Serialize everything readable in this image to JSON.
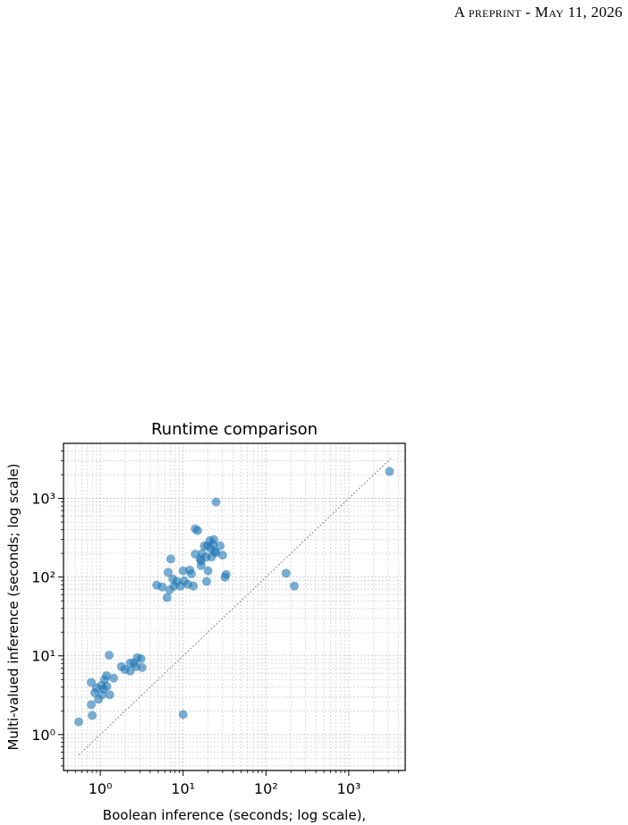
{
  "header": "A preprint - May 11, 2026",
  "chart_data": {
    "type": "scatter",
    "title": "Runtime comparison",
    "x_label": "Boolean inference (seconds; log scale),",
    "y_label": "Multi-valued inference (seconds; log scale)",
    "log_x": true,
    "log_y": true,
    "grid": true,
    "xlim": [
      0.36,
      4800
    ],
    "ylim": [
      0.35,
      5000
    ],
    "xticks": [
      {
        "value": 1,
        "label": "10⁰"
      },
      {
        "value": 10,
        "label": "10¹"
      },
      {
        "value": 100,
        "label": "10²"
      },
      {
        "value": 1000,
        "label": "10³"
      }
    ],
    "yticks": [
      {
        "value": 1,
        "label": "10⁰"
      },
      {
        "value": 10,
        "label": "10¹"
      },
      {
        "value": 100,
        "label": "10²"
      },
      {
        "value": 1000,
        "label": "10³"
      }
    ],
    "xminorticks": [
      0.4,
      0.5,
      0.6,
      0.7,
      0.8,
      0.9,
      2,
      3,
      4,
      5,
      6,
      7,
      8,
      9,
      20,
      30,
      40,
      50,
      60,
      70,
      80,
      90,
      200,
      300,
      400,
      500,
      600,
      700,
      800,
      900,
      2000,
      3000,
      4000
    ],
    "yminorticks": [
      0.4,
      0.5,
      0.6,
      0.7,
      0.8,
      0.9,
      2,
      3,
      4,
      5,
      6,
      7,
      8,
      9,
      20,
      30,
      40,
      50,
      60,
      70,
      80,
      90,
      200,
      300,
      400,
      500,
      600,
      700,
      800,
      900,
      2000,
      3000,
      4000
    ],
    "reference_line": {
      "x": [
        0.55,
        3200
      ],
      "y": [
        0.55,
        3200
      ],
      "color": "#999999"
    },
    "color": "#1f77b4",
    "x": [
      0.55,
      10,
      3100,
      25,
      0.78,
      0.8,
      0.78,
      0.86,
      0.95,
      1.03,
      1.05,
      1.13,
      1.19,
      1.28,
      1.3,
      1.2,
      1.45,
      1.8,
      1.99,
      2.3,
      2.55,
      2.8,
      3.1,
      2.3,
      2.7,
      3.2,
      0.9,
      1.1,
      4.8,
      5.6,
      6.4,
      6.9,
      6.6,
      7.1,
      7.5,
      7.8,
      8.4,
      9.3,
      10,
      10.3,
      11.4,
      12,
      12.6,
      13.3,
      14,
      14,
      15,
      16,
      16.5,
      17,
      18,
      19,
      19.2,
      20,
      19.7,
      21,
      21.5,
      22,
      23,
      24,
      25,
      28,
      30,
      32,
      33,
      23.5,
      175,
      220,
      16.5
    ],
    "y": [
      1.45,
      1.8,
      2200,
      900,
      4.6,
      1.75,
      2.4,
      3.4,
      2.8,
      4.2,
      3.2,
      5.0,
      5.6,
      10.2,
      3.2,
      4.1,
      5.2,
      7.3,
      6.7,
      8.1,
      8.1,
      9.5,
      9.2,
      6.4,
      7.3,
      7.1,
      3.9,
      3.8,
      79,
      75,
      55,
      69,
      115,
      170,
      95,
      77,
      88,
      77,
      120,
      90,
      81,
      123,
      110,
      77,
      196,
      410,
      390,
      170,
      140,
      200,
      250,
      180,
      88,
      120,
      250,
      290,
      230,
      180,
      260,
      210,
      205,
      250,
      190,
      100,
      108,
      300,
      112,
      77,
      160
    ]
  }
}
